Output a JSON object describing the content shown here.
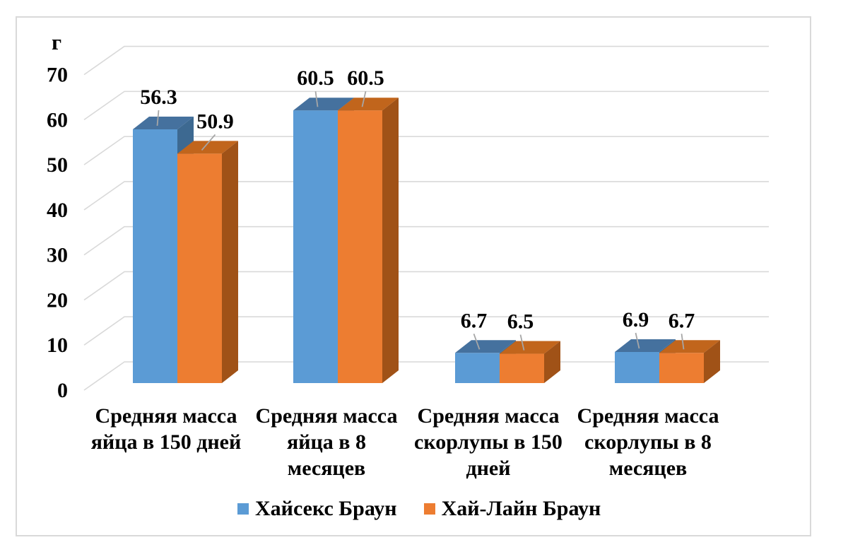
{
  "chart_data": {
    "type": "bar",
    "style": "3d-clustered-column",
    "unit_label": "г",
    "categories": [
      "Средняя масса яйца в 150 дней",
      "Средняя масса яйца в 8 месяцев",
      "Средняя масса скорлупы в 150 дней",
      "Средняя масса скорлупы в 8 месяцев"
    ],
    "category_lines": [
      [
        "Средняя масса",
        "яйца в 150 дней"
      ],
      [
        "Средняя масса",
        "яйца в 8",
        "месяцев"
      ],
      [
        "Средняя масса",
        "скорлупы в 150",
        "дней"
      ],
      [
        "Средняя масса",
        "скорлупы в 8",
        "месяцев"
      ]
    ],
    "series": [
      {
        "name": "Хайсекс Браун",
        "values": [
          56.3,
          60.5,
          6.7,
          6.9
        ],
        "color": "#5B9BD5",
        "top_color": "#45719E",
        "side_color": "#3D6991"
      },
      {
        "name": "Хай-Лайн Браун",
        "values": [
          50.9,
          60.5,
          6.5,
          6.7
        ],
        "color": "#ED7D31",
        "top_color": "#C1651C",
        "side_color": "#A05217"
      }
    ],
    "data_labels": [
      [
        "56.3",
        "60.5",
        "6.7",
        "6.9"
      ],
      [
        "50.9",
        "60.5",
        "6.5",
        "6.7"
      ]
    ],
    "y_ticks": [
      0,
      10,
      20,
      30,
      40,
      50,
      60,
      70
    ],
    "ylim": [
      0,
      70
    ],
    "grid": true,
    "legend_position": "bottom",
    "colors": {
      "gridline": "#D9D9D9",
      "leader_line": "#A6A6A6",
      "frame_border": "#D9D9D9",
      "text": "#000000",
      "background": "#FFFFFF"
    }
  }
}
